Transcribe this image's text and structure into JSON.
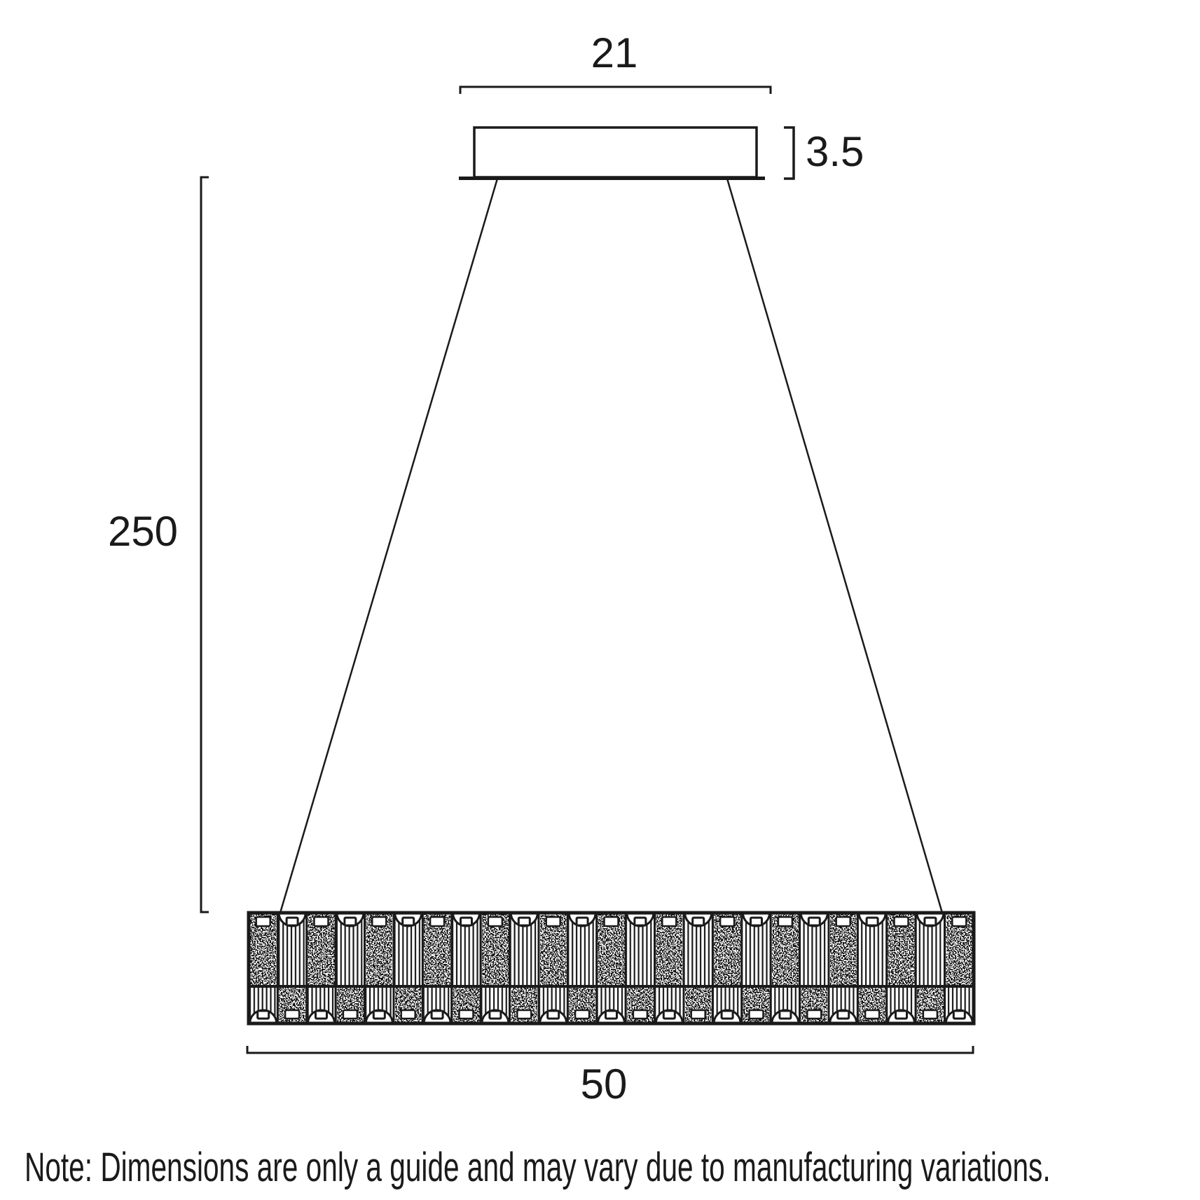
{
  "diagram": {
    "labels": {
      "canopy_width": "21",
      "canopy_height": "3.5",
      "suspension_height": "250",
      "fixture_width": "50"
    },
    "note": "Note: Dimensions are only a guide and may vary due to manufacturing variations.",
    "colors": {
      "line": "#1a1a1a",
      "background": "#ffffff"
    },
    "fixture": {
      "cell_count": 25
    }
  }
}
